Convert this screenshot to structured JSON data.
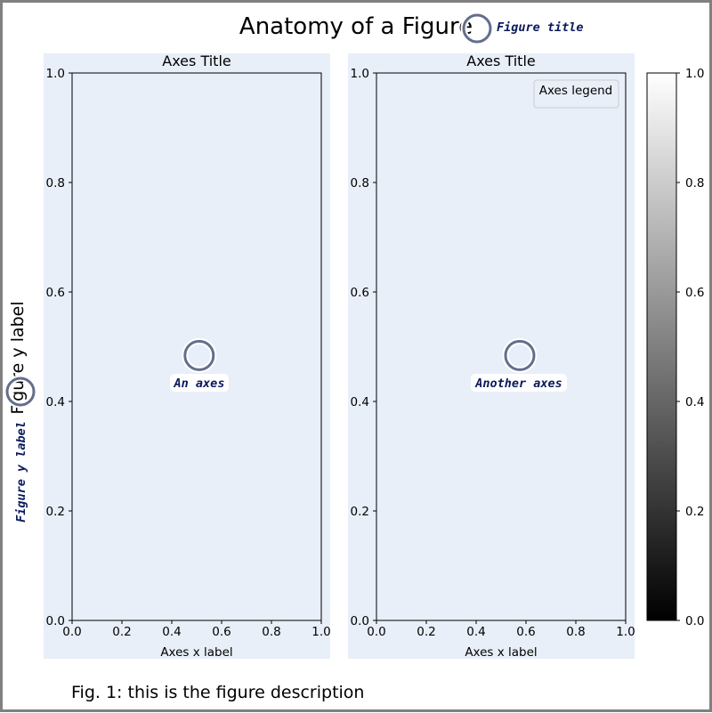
{
  "figure": {
    "title": "Anatomy of a Figure",
    "ylabel": "Figure y label",
    "description": "Fig. 1: this is the figure description",
    "annotations": {
      "title": "Figure title",
      "ylabel": "Figure y label"
    }
  },
  "colors": {
    "panel_bg": "#e8eff8",
    "marker_edge": "#646e8c",
    "annotation_text": "#0a1a5c",
    "frame": "#808080"
  },
  "chart_data": [
    {
      "type": "scatter",
      "title": "Axes Title",
      "xlabel": "Axes x label",
      "ylabel": "",
      "xlim": [
        0,
        1
      ],
      "ylim": [
        0,
        1
      ],
      "xticks": [
        "0.0",
        "0.2",
        "0.4",
        "0.6",
        "0.8",
        "1.0"
      ],
      "yticks": [
        "0.0",
        "0.2",
        "0.4",
        "0.6",
        "0.8",
        "1.0"
      ],
      "grid": false,
      "annotation": "An axes",
      "marker": {
        "x": 0.51,
        "y": 0.484
      }
    },
    {
      "type": "scatter",
      "title": "Axes Title",
      "xlabel": "Axes x label",
      "ylabel": "",
      "xlim": [
        0,
        1
      ],
      "ylim": [
        0,
        1
      ],
      "xticks": [
        "0.0",
        "0.2",
        "0.4",
        "0.6",
        "0.8",
        "1.0"
      ],
      "yticks": [
        "0.0",
        "0.2",
        "0.4",
        "0.6",
        "0.8",
        "1.0"
      ],
      "grid": false,
      "legend": {
        "title": "Axes legend",
        "position": "top-right"
      },
      "annotation": "Another axes",
      "marker": {
        "x": 0.575,
        "y": 0.484
      }
    },
    {
      "type": "heatmap",
      "colormap": "gray",
      "range": [
        0,
        1
      ],
      "ticks": [
        "0.0",
        "0.2",
        "0.4",
        "0.6",
        "0.8",
        "1.0"
      ]
    }
  ]
}
